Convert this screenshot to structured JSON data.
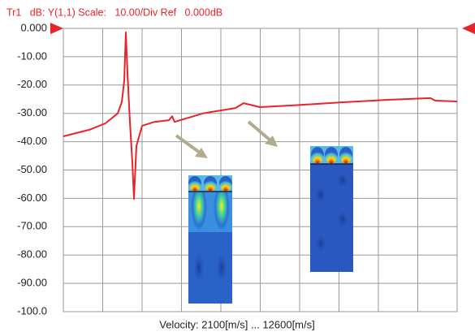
{
  "chart_data": {
    "type": "line",
    "title": "Tr1   dB: Y(1,1) Scale:   10.00/Div Ref   0.000dB",
    "xlabel": "Velocity: 2100[m/s] ... 12600[m/s]",
    "x": [
      2100,
      2793,
      3226,
      3551,
      3659,
      3724,
      3767,
      3810,
      3875,
      3940,
      3984,
      4049,
      4200,
      4525,
      4915,
      5001,
      5066,
      5824,
      6690,
      6906,
      7339,
      8205,
      9504,
      10803,
      11886,
      12016,
      12600
    ],
    "values": [
      -38.1,
      -35.8,
      -33.5,
      -30,
      -26,
      -18.6,
      -1.4,
      -15.8,
      -33,
      -47.3,
      -60.2,
      -41.5,
      -34.4,
      -33,
      -32.4,
      -31,
      -33,
      -30,
      -28.1,
      -26.4,
      -27.8,
      -27.2,
      -26.1,
      -25.2,
      -24.6,
      -25.5,
      -25.8
    ],
    "color": "#e8242a",
    "xlim": [
      2100,
      12600
    ],
    "xticks": [
      2100,
      3150,
      4200,
      5250,
      6300,
      7350,
      8400,
      9450,
      10500,
      11550,
      12600
    ],
    "ylim": [
      -100,
      0
    ],
    "yticks": [
      {
        "value": 0,
        "label": "0.000"
      },
      {
        "value": -10,
        "label": "-10.00"
      },
      {
        "value": -20,
        "label": "-20.00"
      },
      {
        "value": -30,
        "label": "-30.00"
      },
      {
        "value": -40,
        "label": "-40.00"
      },
      {
        "value": -50,
        "label": "-50.00"
      },
      {
        "value": -60,
        "label": "-60.00"
      },
      {
        "value": -70,
        "label": "-70.00"
      },
      {
        "value": -80,
        "label": "-80.00"
      },
      {
        "value": -90,
        "label": "-90.00"
      },
      {
        "value": -100,
        "label": "-100.0"
      }
    ],
    "grid": true
  }
}
